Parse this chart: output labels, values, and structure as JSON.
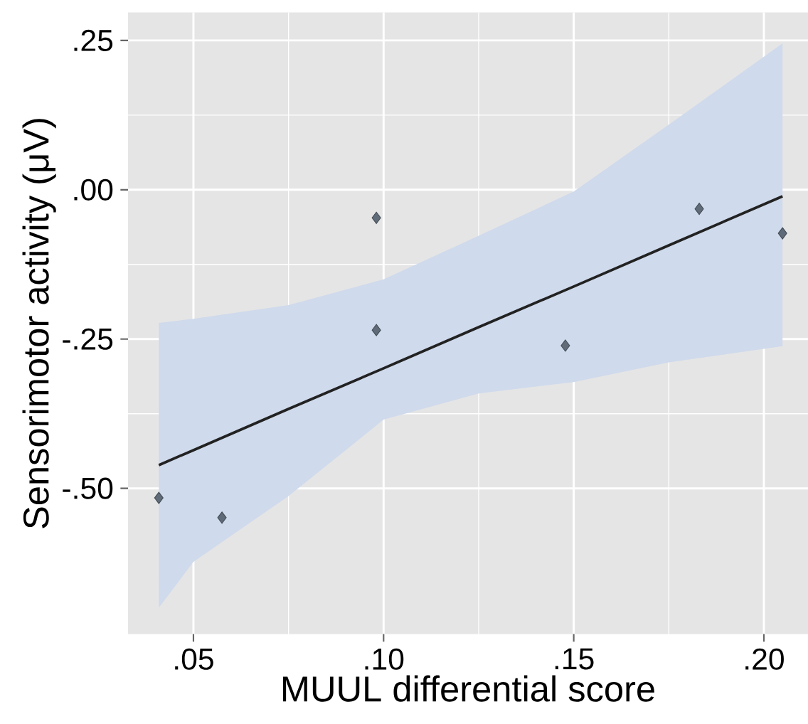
{
  "chart_data": {
    "type": "scatter",
    "xlabel": "MUUL differential score",
    "ylabel": "Sensorimotor activity (μV)",
    "xlim": [
      0.0328,
      0.2116
    ],
    "ylim": [
      -0.744,
      0.297
    ],
    "xticks": [
      {
        "value": 0.05,
        "label": ".05"
      },
      {
        "value": 0.1,
        "label": ".10"
      },
      {
        "value": 0.15,
        "label": ".15"
      },
      {
        "value": 0.2,
        "label": ".20"
      }
    ],
    "yticks": [
      {
        "value": -0.5,
        "label": "-.50"
      },
      {
        "value": -0.25,
        "label": "-.25"
      },
      {
        "value": 0,
        "label": ".00"
      },
      {
        "value": 0.25,
        "label": ".25"
      }
    ],
    "grid": true,
    "series": [
      {
        "type": "scatter",
        "marker": "diamond",
        "color": "#5f6b78",
        "x": [
          0.0409,
          0.0575,
          0.0981,
          0.0981,
          0.1478,
          0.183,
          0.2049
        ],
        "values": [
          -0.516,
          -0.549,
          -0.047,
          -0.235,
          -0.261,
          -0.032,
          -0.073
        ]
      },
      {
        "type": "line",
        "color": "#222222",
        "x": [
          0.0409,
          0.05,
          0.075,
          0.1,
          0.125,
          0.15,
          0.175,
          0.2049
        ],
        "values": [
          -0.461,
          -0.436,
          -0.367,
          -0.299,
          -0.23,
          -0.162,
          -0.093,
          -0.011
        ],
        "lower": [
          -0.7,
          -0.623,
          -0.513,
          -0.385,
          -0.341,
          -0.322,
          -0.289,
          -0.262
        ],
        "upper": [
          -0.223,
          -0.216,
          -0.193,
          -0.15,
          -0.077,
          -0.003,
          0.109,
          0.245
        ]
      }
    ]
  }
}
